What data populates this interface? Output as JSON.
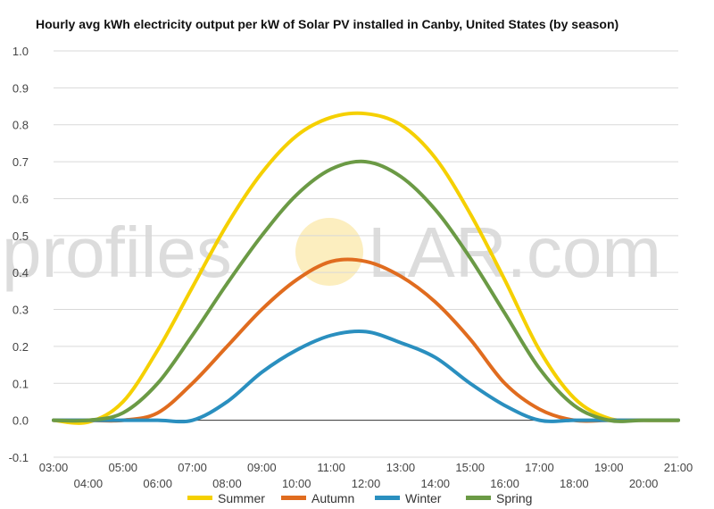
{
  "title": "Hourly avg kWh electricity output per kW of Solar PV installed in Canby, United States (by season)",
  "watermark": {
    "left": "profiles",
    "right": "LAR.com",
    "sun_color": "#fbe7a4"
  },
  "chart_data": {
    "type": "line",
    "title": "Hourly avg kWh electricity output per kW of Solar PV installed in Canby, United States (by season)",
    "xlabel": "",
    "ylabel": "",
    "x": [
      3,
      4,
      5,
      6,
      7,
      8,
      9,
      10,
      11,
      12,
      13,
      14,
      15,
      16,
      17,
      18,
      19,
      20,
      21
    ],
    "x_tick_labels": [
      "03:00",
      "04:00",
      "05:00",
      "06:00",
      "07:00",
      "08:00",
      "09:00",
      "10:00",
      "11:00",
      "12:00",
      "13:00",
      "14:00",
      "15:00",
      "16:00",
      "17:00",
      "18:00",
      "19:00",
      "20:00",
      "21:00"
    ],
    "ylim": [
      -0.1,
      1.0
    ],
    "y_ticks": [
      -0.1,
      0.0,
      0.1,
      0.2,
      0.3,
      0.4,
      0.5,
      0.6,
      0.7,
      0.8,
      0.9,
      1.0
    ],
    "y_tick_labels": [
      "-0.1",
      "0.0",
      "0.1",
      "0.2",
      "0.3",
      "0.4",
      "0.5",
      "0.6",
      "0.7",
      "0.8",
      "0.9",
      "1.0"
    ],
    "grid": true,
    "legend_position": "bottom",
    "series": [
      {
        "name": "Summer",
        "color": "#f5d000",
        "values": [
          0.0,
          -0.005,
          0.05,
          0.19,
          0.36,
          0.53,
          0.67,
          0.77,
          0.82,
          0.83,
          0.8,
          0.71,
          0.56,
          0.38,
          0.19,
          0.06,
          0.005,
          0.0,
          0.0
        ]
      },
      {
        "name": "Autumn",
        "color": "#e06c1f",
        "values": [
          0.0,
          0.0,
          0.0,
          0.02,
          0.1,
          0.2,
          0.3,
          0.38,
          0.43,
          0.43,
          0.39,
          0.32,
          0.22,
          0.1,
          0.03,
          0.0,
          0.0,
          0.0,
          0.0
        ]
      },
      {
        "name": "Winter",
        "color": "#2a8fbf",
        "values": [
          0.0,
          0.0,
          0.0,
          0.0,
          0.0,
          0.05,
          0.13,
          0.19,
          0.23,
          0.24,
          0.21,
          0.17,
          0.1,
          0.04,
          0.0,
          0.0,
          0.0,
          0.0,
          0.0
        ]
      },
      {
        "name": "Spring",
        "color": "#6b9a45",
        "values": [
          0.0,
          0.0,
          0.02,
          0.1,
          0.23,
          0.37,
          0.5,
          0.61,
          0.68,
          0.7,
          0.66,
          0.57,
          0.44,
          0.29,
          0.14,
          0.04,
          0.0,
          0.0,
          0.0
        ]
      }
    ]
  }
}
